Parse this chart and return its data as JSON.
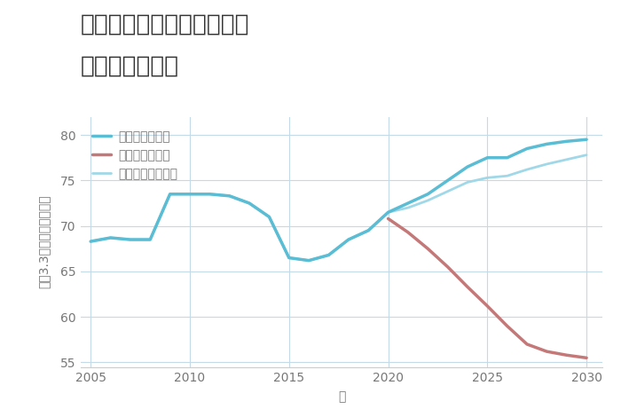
{
  "title_line1": "大阪府高槻市成合東の町の",
  "title_line2": "土地の価格推移",
  "xlabel": "年",
  "ylabel_top": "坪（3.3㎡）単価（万円）",
  "xlim": [
    2004.5,
    2030.8
  ],
  "ylim": [
    54.5,
    82
  ],
  "yticks": [
    55,
    60,
    65,
    70,
    75,
    80
  ],
  "xticks": [
    2005,
    2010,
    2015,
    2020,
    2025,
    2030
  ],
  "good_scenario": {
    "label": "グッドシナリオ",
    "color": "#5bbdd4",
    "x": [
      2005,
      2006,
      2007,
      2008,
      2009,
      2010,
      2011,
      2012,
      2013,
      2014,
      2015,
      2016,
      2017,
      2018,
      2019,
      2020,
      2021,
      2022,
      2023,
      2024,
      2025,
      2026,
      2027,
      2028,
      2029,
      2030
    ],
    "y": [
      68.3,
      68.7,
      68.5,
      68.5,
      73.5,
      73.5,
      73.5,
      73.3,
      72.5,
      71.0,
      66.5,
      66.2,
      66.8,
      68.5,
      69.5,
      71.5,
      72.5,
      73.5,
      75.0,
      76.5,
      77.5,
      77.5,
      78.5,
      79.0,
      79.3,
      79.5
    ],
    "linewidth": 2.5,
    "zorder": 4
  },
  "bad_scenario": {
    "label": "バッドシナリオ",
    "color": "#c47878",
    "x": [
      2020,
      2021,
      2022,
      2023,
      2024,
      2025,
      2026,
      2027,
      2028,
      2029,
      2030
    ],
    "y": [
      70.8,
      69.3,
      67.5,
      65.5,
      63.3,
      61.2,
      59.0,
      57.0,
      56.2,
      55.8,
      55.5
    ],
    "linewidth": 2.5,
    "zorder": 3
  },
  "normal_scenario": {
    "label": "ノーマルシナリオ",
    "color": "#a0d8e8",
    "x": [
      2005,
      2006,
      2007,
      2008,
      2009,
      2010,
      2011,
      2012,
      2013,
      2014,
      2015,
      2016,
      2017,
      2018,
      2019,
      2020,
      2021,
      2022,
      2023,
      2024,
      2025,
      2026,
      2027,
      2028,
      2029,
      2030
    ],
    "y": [
      68.3,
      68.7,
      68.5,
      68.5,
      73.5,
      73.5,
      73.5,
      73.3,
      72.5,
      71.0,
      66.5,
      66.2,
      66.8,
      68.5,
      69.5,
      71.5,
      72.0,
      72.8,
      73.8,
      74.8,
      75.3,
      75.5,
      76.2,
      76.8,
      77.3,
      77.8
    ],
    "linewidth": 2.0,
    "zorder": 2
  },
  "background_color": "#ffffff",
  "grid_color": "#c5dae8",
  "title_fontsize": 19,
  "label_fontsize": 10,
  "tick_fontsize": 10,
  "legend_fontsize": 10,
  "tick_color": "#777777",
  "label_color": "#777777"
}
